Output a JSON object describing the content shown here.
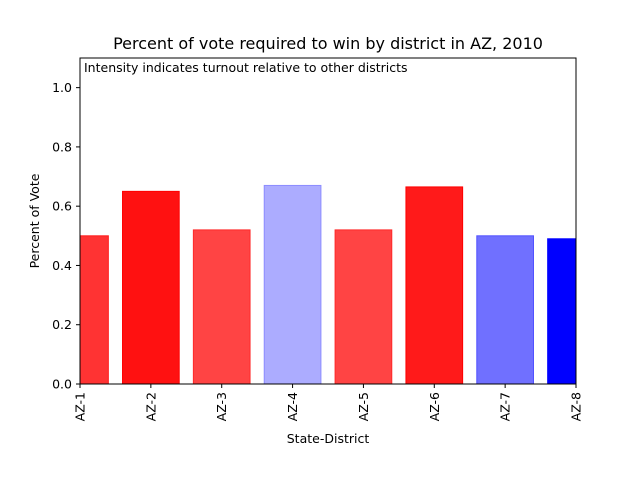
{
  "chart_data": {
    "type": "bar",
    "title": "Percent of vote required to win by district in AZ, 2010",
    "annotation": "Intensity indicates turnout relative to other districts",
    "xlabel": "State-District",
    "ylabel": "Percent of Vote",
    "ylim": [
      0,
      1.1
    ],
    "yticks": [
      "0.0",
      "0.2",
      "0.4",
      "0.6",
      "0.8",
      "1.0"
    ],
    "categories": [
      "AZ-1",
      "AZ-2",
      "AZ-3",
      "AZ-4",
      "AZ-5",
      "AZ-6",
      "AZ-7",
      "AZ-8"
    ],
    "values": [
      0.5,
      0.65,
      0.52,
      0.67,
      0.52,
      0.665,
      0.5,
      0.49
    ],
    "colors": [
      "#ff3333",
      "#ff1111",
      "#ff4444",
      "#acacff",
      "#ff4444",
      "#ff1a1a",
      "#7070ff",
      "#0000ff"
    ],
    "edge_colors": [
      "#ff1a1a",
      "#ff0000",
      "#ff2a2a",
      "#8c8cff",
      "#ff2a2a",
      "#ff0000",
      "#5050ff",
      "#0000ff"
    ],
    "grid": false,
    "legend": "none"
  }
}
